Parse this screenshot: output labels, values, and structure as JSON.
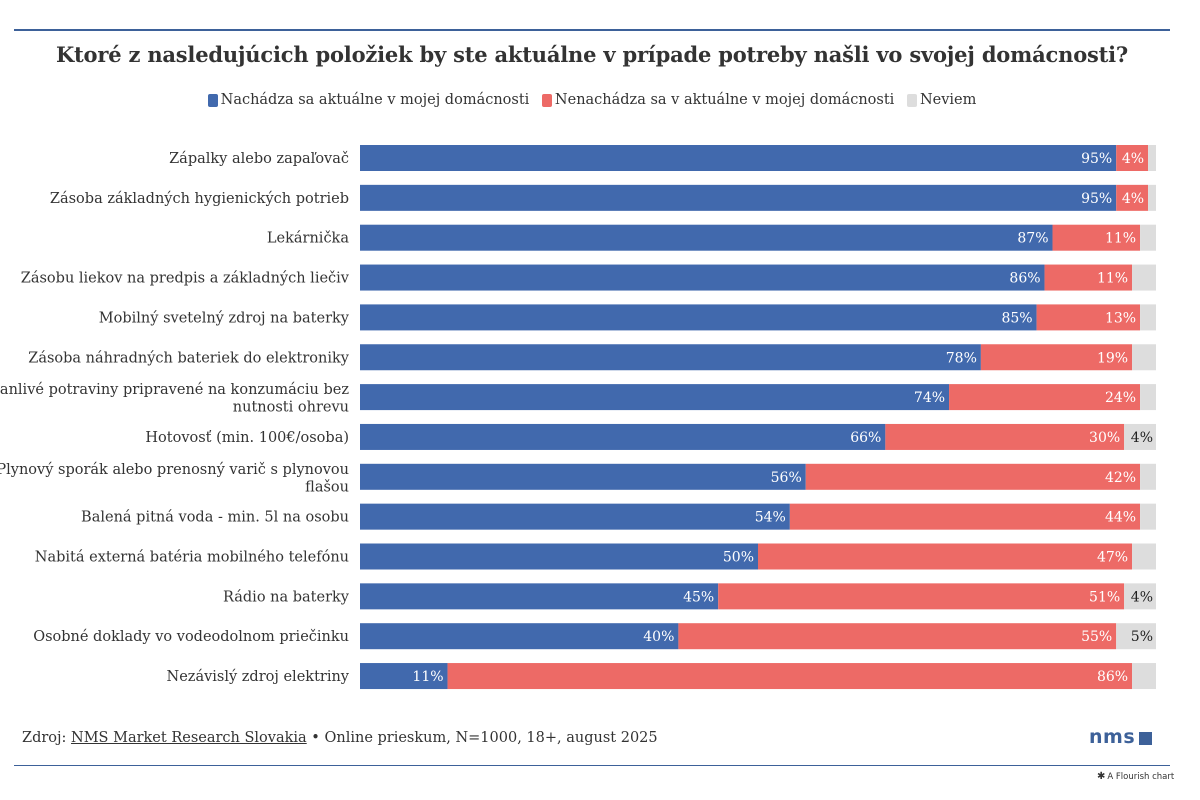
{
  "colors": {
    "present": "#4169ad",
    "absent": "#ed6a66",
    "unknown": "#dddddd",
    "rule": "#3d6199"
  },
  "footer": {
    "prefix": "Zdroj: ",
    "source": "NMS Market Research Slovakia",
    "details": " • Online prieskum, N=1000, 18+, august 2025"
  },
  "logo": {
    "text": "nms"
  },
  "flourish": {
    "icon": "✱",
    "text": "A Flourish chart"
  },
  "chart_data": {
    "type": "bar",
    "orientation": "horizontal",
    "stacked": true,
    "title": "Ktoré z nasledujúcich položiek by ste aktuálne v prípade potreby našli vo svojej domácnosti?",
    "legend_position": "top-center",
    "xlim": [
      0,
      100
    ],
    "unit": "%",
    "categories": [
      [
        "Zápalky alebo zapaľovač"
      ],
      [
        "Zásoba základných hygienických potrieb"
      ],
      [
        "Lekárnička"
      ],
      [
        "Zásobu liekov na predpis a základných liečiv"
      ],
      [
        "Mobilný svetelný zdroj na baterky"
      ],
      [
        "Zásoba náhradných bateriek do elektroniky"
      ],
      [
        "Trvanlivé potraviny pripravené na konzumáciu bez",
        "nutnosti ohrevu"
      ],
      [
        "Hotovosť (min. 100€/osoba)"
      ],
      [
        "Plynový sporák alebo prenosný varič s plynovou",
        "flašou"
      ],
      [
        "Balená pitná voda - min. 5l na osobu"
      ],
      [
        "Nabitá externá batéria mobilného telefónu"
      ],
      [
        "Rádio na baterky"
      ],
      [
        "Osobné doklady vo vodeodolnom priečinku"
      ],
      [
        "Nezávislý zdroj elektriny"
      ]
    ],
    "series": [
      {
        "name": "Nachádza sa aktuálne v mojej domácnosti",
        "color": "#4169ad",
        "values": [
          95,
          95,
          87,
          86,
          85,
          78,
          74,
          66,
          56,
          54,
          50,
          45,
          40,
          11
        ]
      },
      {
        "name": "Nenachádza sa v aktuálne v mojej domácnosti",
        "color": "#ed6a66",
        "values": [
          4,
          4,
          11,
          11,
          13,
          19,
          24,
          30,
          42,
          44,
          47,
          51,
          55,
          86
        ]
      },
      {
        "name": "Neviem",
        "color": "#dddddd",
        "values": [
          1,
          1,
          2,
          3,
          2,
          3,
          2,
          4,
          2,
          2,
          3,
          4,
          5,
          3
        ],
        "labels_shown": [
          false,
          false,
          false,
          false,
          false,
          false,
          false,
          true,
          false,
          false,
          false,
          true,
          true,
          false
        ]
      }
    ]
  }
}
